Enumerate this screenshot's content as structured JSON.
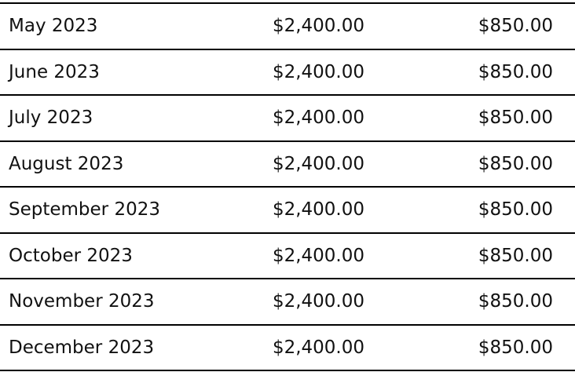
{
  "table": {
    "rows": [
      [
        "May 2023",
        "$2,400.00",
        "$850.00"
      ],
      [
        "June 2023",
        "$2,400.00",
        "$850.00"
      ],
      [
        "July 2023",
        "$2,400.00",
        "$850.00"
      ],
      [
        "August 2023",
        "$2,400.00",
        "$850.00"
      ],
      [
        "September 2023",
        "$2,400.00",
        "$850.00"
      ],
      [
        "October 2023",
        "$2,400.00",
        "$850.00"
      ],
      [
        "November 2023",
        "$2,400.00",
        "$850.00"
      ],
      [
        "December 2023",
        "$2,400.00",
        "$850.00"
      ]
    ]
  }
}
